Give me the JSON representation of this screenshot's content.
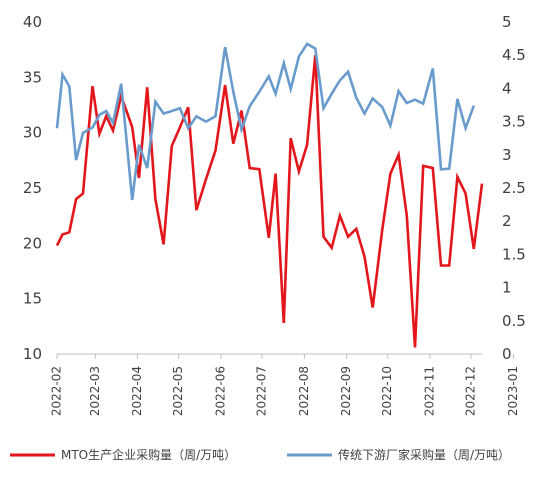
{
  "chart_data": {
    "type": "line",
    "title": "",
    "x_categories": [
      "2022-02",
      "2022-03",
      "2022-04",
      "2022-05",
      "2022-06",
      "2022-07",
      "2022-08",
      "2022-09",
      "2022-10",
      "2022-11",
      "2022-12",
      "2023-01"
    ],
    "y_left": {
      "label": "",
      "range": [
        10,
        40
      ],
      "ticks": [
        10,
        15,
        20,
        25,
        30,
        35,
        40
      ]
    },
    "y_right": {
      "label": "",
      "range": [
        0,
        5
      ],
      "ticks": [
        0,
        0.5,
        1,
        1.5,
        2,
        2.5,
        3,
        3.5,
        4,
        4.5,
        5
      ]
    },
    "grid": false,
    "legend_position": "bottom",
    "series": [
      {
        "name": "MTO生产企业采购量（周/万吨）",
        "axis": "left",
        "color": "#e3161b",
        "points": [
          [
            "2022-02-01",
            19.8
          ],
          [
            "2022-02-05",
            20.8
          ],
          [
            "2022-02-10",
            21.0
          ],
          [
            "2022-02-15",
            24.0
          ],
          [
            "2022-02-20",
            24.5
          ],
          [
            "2022-02-27",
            34.2
          ],
          [
            "2022-03-04",
            29.9
          ],
          [
            "2022-03-09",
            31.5
          ],
          [
            "2022-03-14",
            30.2
          ],
          [
            "2022-03-20",
            33.3
          ],
          [
            "2022-03-28",
            30.5
          ],
          [
            "2022-04-02",
            25.9
          ],
          [
            "2022-04-08",
            34.1
          ],
          [
            "2022-04-14",
            24.0
          ],
          [
            "2022-04-20",
            19.9
          ],
          [
            "2022-04-26",
            28.8
          ],
          [
            "2022-05-02",
            30.5
          ],
          [
            "2022-05-08",
            32.3
          ],
          [
            "2022-05-14",
            23.0
          ],
          [
            "2022-05-21",
            25.8
          ],
          [
            "2022-05-28",
            28.4
          ],
          [
            "2022-06-04",
            34.3
          ],
          [
            "2022-06-10",
            29.0
          ],
          [
            "2022-06-16",
            32.0
          ],
          [
            "2022-06-22",
            26.8
          ],
          [
            "2022-06-29",
            26.7
          ],
          [
            "2022-07-06",
            20.5
          ],
          [
            "2022-07-11",
            26.3
          ],
          [
            "2022-07-17",
            12.8
          ],
          [
            "2022-07-22",
            29.5
          ],
          [
            "2022-07-28",
            26.5
          ],
          [
            "2022-08-03",
            28.9
          ],
          [
            "2022-08-09",
            37.0
          ],
          [
            "2022-08-15",
            20.6
          ],
          [
            "2022-08-21",
            19.6
          ],
          [
            "2022-08-27",
            22.5
          ],
          [
            "2022-09-02",
            20.6
          ],
          [
            "2022-09-08",
            21.3
          ],
          [
            "2022-09-14",
            18.8
          ],
          [
            "2022-09-20",
            14.2
          ],
          [
            "2022-09-27",
            21.2
          ],
          [
            "2022-10-03",
            26.3
          ],
          [
            "2022-10-09",
            28.0
          ],
          [
            "2022-10-15",
            22.5
          ],
          [
            "2022-10-21",
            10.6
          ],
          [
            "2022-10-27",
            27.0
          ],
          [
            "2022-11-03",
            26.8
          ],
          [
            "2022-11-09",
            18.0
          ],
          [
            "2022-11-15",
            18.0
          ],
          [
            "2022-11-21",
            26.0
          ],
          [
            "2022-11-27",
            24.5
          ],
          [
            "2022-12-03",
            19.5
          ],
          [
            "2022-12-09",
            25.4
          ]
        ]
      },
      {
        "name": "传统下游厂家采购量（周/万吨）",
        "axis": "right",
        "color": "#6a9bcd",
        "points": [
          [
            "2022-02-01",
            3.4
          ],
          [
            "2022-02-05",
            4.21
          ],
          [
            "2022-02-10",
            4.03
          ],
          [
            "2022-02-15",
            2.92
          ],
          [
            "2022-02-20",
            3.33
          ],
          [
            "2022-02-27",
            3.41
          ],
          [
            "2022-03-04",
            3.6
          ],
          [
            "2022-03-09",
            3.66
          ],
          [
            "2022-03-14",
            3.48
          ],
          [
            "2022-03-20",
            4.07
          ],
          [
            "2022-03-28",
            2.32
          ],
          [
            "2022-04-02",
            3.15
          ],
          [
            "2022-04-08",
            2.8
          ],
          [
            "2022-04-14",
            3.8
          ],
          [
            "2022-04-20",
            3.62
          ],
          [
            "2022-04-26",
            3.66
          ],
          [
            "2022-05-02",
            3.7
          ],
          [
            "2022-05-08",
            3.4
          ],
          [
            "2022-05-14",
            3.58
          ],
          [
            "2022-05-21",
            3.5
          ],
          [
            "2022-05-28",
            3.58
          ],
          [
            "2022-06-04",
            4.62
          ],
          [
            "2022-06-10",
            3.95
          ],
          [
            "2022-06-16",
            3.38
          ],
          [
            "2022-06-22",
            3.73
          ],
          [
            "2022-06-29",
            3.95
          ],
          [
            "2022-07-06",
            4.18
          ],
          [
            "2022-07-11",
            3.92
          ],
          [
            "2022-07-17",
            4.38
          ],
          [
            "2022-07-22",
            3.99
          ],
          [
            "2022-07-28",
            4.48
          ],
          [
            "2022-08-03",
            4.67
          ],
          [
            "2022-08-09",
            4.6
          ],
          [
            "2022-08-15",
            3.7
          ],
          [
            "2022-08-21",
            3.92
          ],
          [
            "2022-08-27",
            4.12
          ],
          [
            "2022-09-02",
            4.25
          ],
          [
            "2022-09-08",
            3.86
          ],
          [
            "2022-09-14",
            3.62
          ],
          [
            "2022-09-20",
            3.85
          ],
          [
            "2022-09-27",
            3.72
          ],
          [
            "2022-10-03",
            3.44
          ],
          [
            "2022-10-09",
            3.96
          ],
          [
            "2022-10-15",
            3.78
          ],
          [
            "2022-10-21",
            3.83
          ],
          [
            "2022-10-27",
            3.77
          ],
          [
            "2022-11-03",
            4.3
          ],
          [
            "2022-11-09",
            2.78
          ],
          [
            "2022-11-15",
            2.79
          ],
          [
            "2022-11-21",
            3.84
          ],
          [
            "2022-11-27",
            3.4
          ],
          [
            "2022-12-03",
            3.74
          ]
        ]
      }
    ]
  }
}
